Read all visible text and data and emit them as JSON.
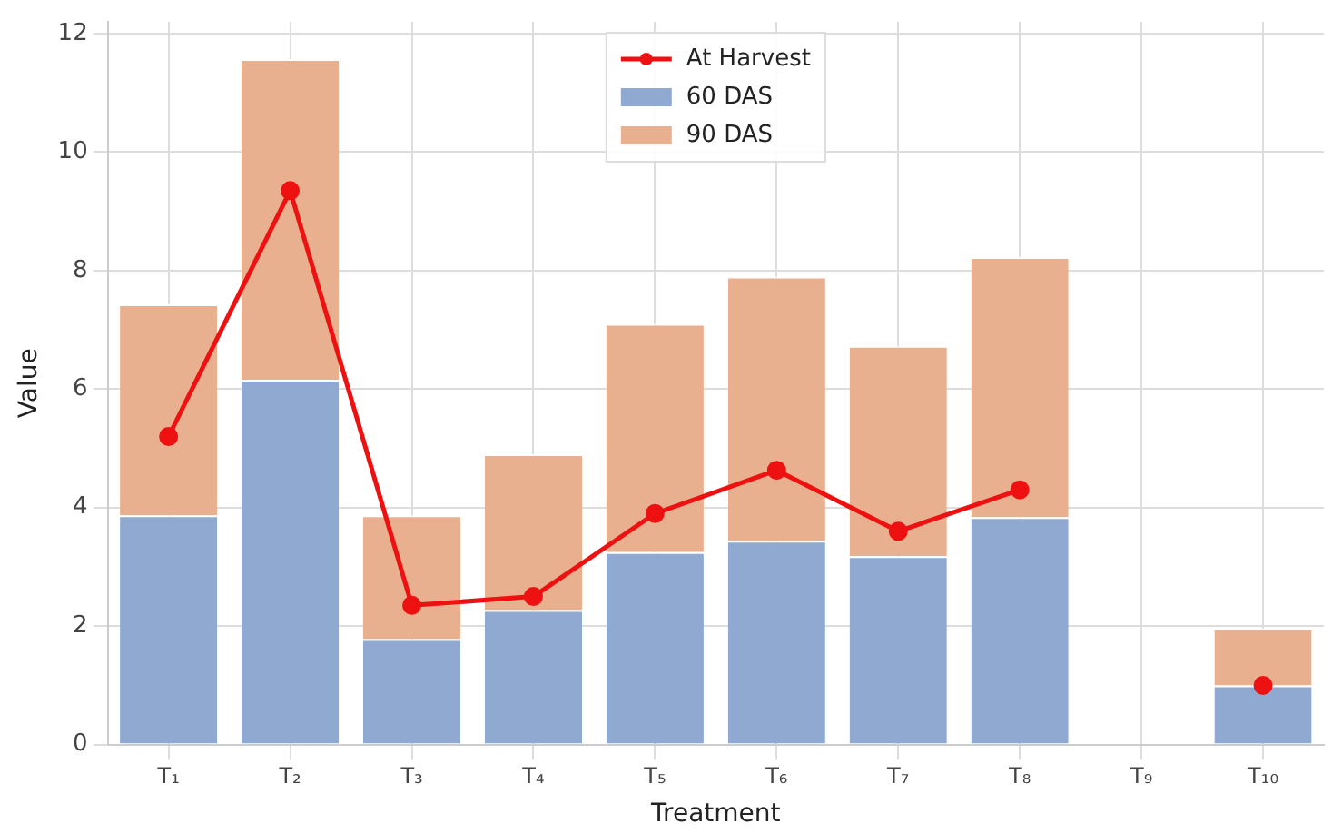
{
  "chart_data": {
    "type": "bar",
    "stacked": true,
    "xlabel": "Treatment",
    "ylabel": "Value",
    "categories": [
      "T₁",
      "T₂",
      "T₃",
      "T₄",
      "T₅",
      "T₆",
      "T₇",
      "T₈",
      "T₉",
      "T₁₀"
    ],
    "series": [
      {
        "name": "At Harvest",
        "type": "line",
        "color": "#ee1111",
        "values": [
          5.2,
          9.35,
          2.35,
          2.5,
          3.9,
          4.63,
          3.6,
          4.3,
          null,
          1.0
        ]
      },
      {
        "name": "60 DAS",
        "color": "#8fa9d0",
        "values": [
          3.87,
          6.16,
          1.78,
          2.27,
          3.25,
          3.44,
          3.18,
          3.84,
          0,
          1.0
        ]
      },
      {
        "name": "90 DAS",
        "color": "#e9b08f",
        "values": [
          3.56,
          5.41,
          2.09,
          2.63,
          3.85,
          4.46,
          3.55,
          4.39,
          0,
          0.96
        ]
      }
    ],
    "ylim": [
      0,
      12.2
    ],
    "yticks": [
      0,
      2,
      4,
      6,
      8,
      10,
      12
    ],
    "grid": true,
    "legend": "top",
    "marker": "circle",
    "line_style": "solid"
  }
}
